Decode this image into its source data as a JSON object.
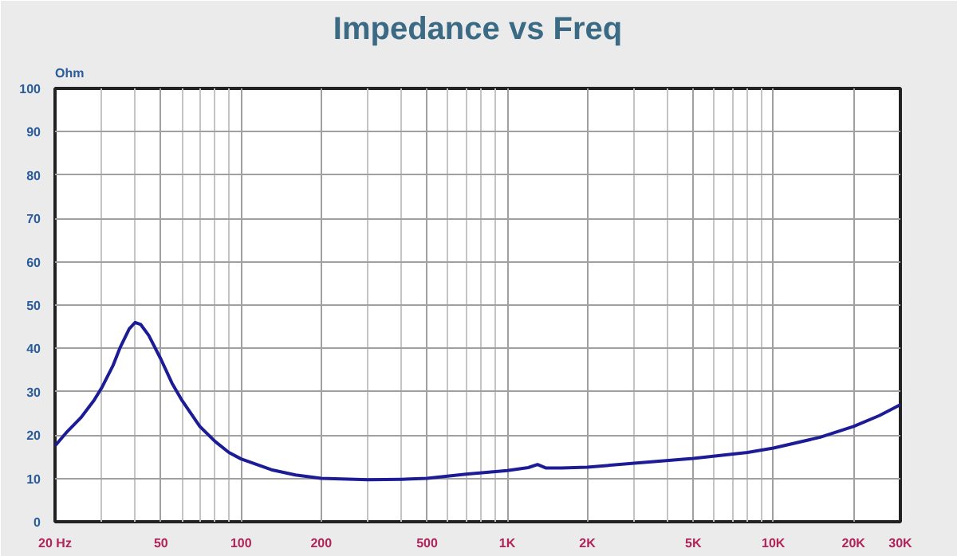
{
  "chart_data": {
    "type": "line",
    "title": "Impedance vs Freq",
    "ylabel": "Ohm",
    "x": [
      20,
      22,
      25,
      28,
      30,
      33,
      35,
      38,
      40,
      42,
      45,
      50,
      55,
      60,
      70,
      80,
      90,
      100,
      130,
      160,
      200,
      300,
      400,
      500,
      700,
      1000,
      1200,
      1300,
      1400,
      1600,
      2000,
      3000,
      5000,
      8000,
      10000,
      15000,
      20000,
      25000,
      30000
    ],
    "series": [
      {
        "color": "#1c1c96",
        "values": [
          17.5,
          20.5,
          24,
          28,
          31,
          36,
          40,
          44.5,
          46,
          45.5,
          43,
          37.5,
          32,
          28,
          22,
          18.5,
          16,
          14.5,
          12,
          10.8,
          10,
          9.7,
          9.8,
          10,
          11,
          11.8,
          12.5,
          13.2,
          12.4,
          12.4,
          12.6,
          13.5,
          14.6,
          16,
          17,
          19.5,
          22,
          24.5,
          27
        ]
      }
    ],
    "xlim": [
      20,
      30000
    ],
    "ylim": [
      0,
      100
    ],
    "xticks": [
      {
        "value": 20,
        "label": "20 Hz"
      },
      50,
      100,
      200,
      500,
      {
        "value": 1000,
        "label": "1K"
      },
      {
        "value": 2000,
        "label": "2K"
      },
      {
        "value": 5000,
        "label": "5K"
      },
      {
        "value": 10000,
        "label": "10K"
      },
      {
        "value": 20000,
        "label": "20K"
      },
      {
        "value": 30000,
        "label": "30K"
      }
    ],
    "yticks": [
      0,
      10,
      20,
      30,
      40,
      50,
      60,
      70,
      80,
      90,
      100
    ],
    "log": "x",
    "grid": true
  }
}
